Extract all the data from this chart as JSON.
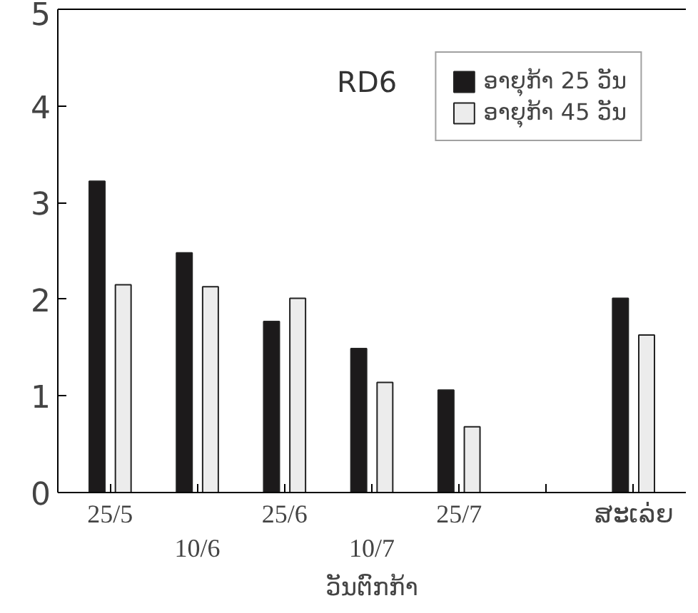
{
  "chart_data": {
    "type": "bar",
    "title": "RD6",
    "xlabel": "ວັນຕົກກ້າ",
    "categories": [
      "25/5",
      "10/6",
      "25/6",
      "10/7",
      "25/7",
      null,
      "ສະເລ່ຍ"
    ],
    "series": [
      {
        "name": "ອາຍຸກ້າ 25 ວັນ",
        "color": "#1c1a1b",
        "values": [
          3.22,
          2.48,
          1.77,
          1.49,
          1.06,
          null,
          2.01
        ]
      },
      {
        "name": "ອາຍຸກ້າ 45 ວັນ",
        "color": "#ececec",
        "values": [
          2.15,
          2.13,
          2.01,
          1.14,
          0.68,
          null,
          1.63
        ]
      }
    ],
    "ylim": [
      0,
      5
    ],
    "yticks": [
      0,
      1,
      2,
      3,
      4,
      5
    ],
    "grid": false,
    "legend": "top right"
  }
}
